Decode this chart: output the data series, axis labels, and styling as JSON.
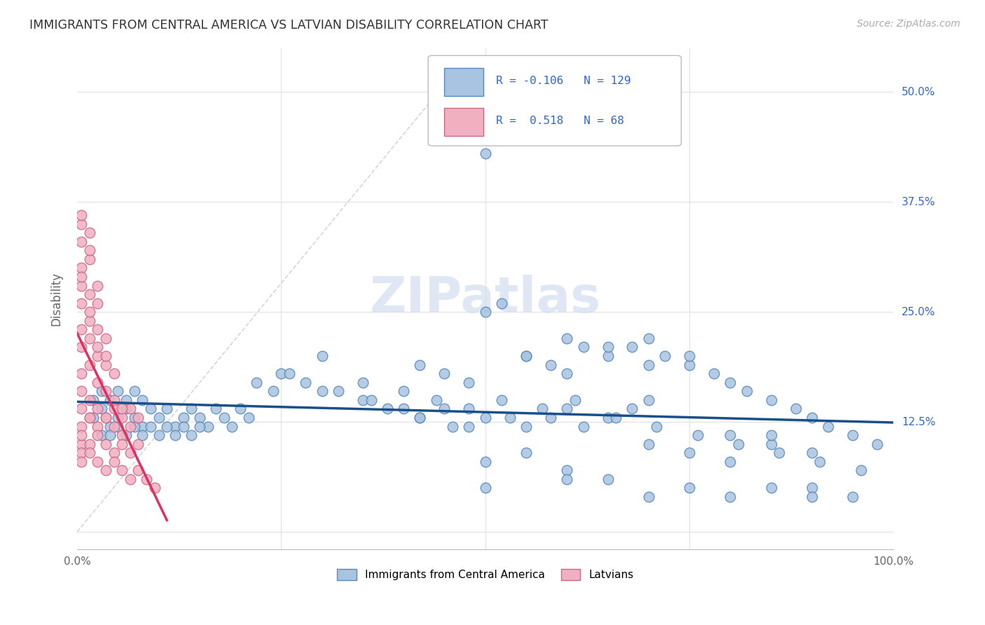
{
  "title": "IMMIGRANTS FROM CENTRAL AMERICA VS LATVIAN DISABILITY CORRELATION CHART",
  "source": "Source: ZipAtlas.com",
  "ylabel": "Disability",
  "ytick_values": [
    0.0,
    0.125,
    0.25,
    0.375,
    0.5
  ],
  "xlim": [
    0.0,
    1.0
  ],
  "ylim": [
    -0.02,
    0.55
  ],
  "blue_R": -0.106,
  "blue_N": 129,
  "pink_R": 0.518,
  "pink_N": 68,
  "blue_color": "#a8c4e0",
  "blue_edge": "#5588bb",
  "blue_line_color": "#1a4f8a",
  "pink_color": "#f0b0c0",
  "pink_edge": "#cc6688",
  "pink_line_color": "#e03060",
  "ref_line_color": "#cccccc",
  "grid_color": "#e0e0e0",
  "title_color": "#333333",
  "axis_label_color": "#666666",
  "legend_R_color": "#3366cc",
  "watermark_color": "#ccd8ee",
  "blue_x": [
    0.02,
    0.03,
    0.04,
    0.05,
    0.06,
    0.07,
    0.08,
    0.09,
    0.1,
    0.11,
    0.12,
    0.13,
    0.14,
    0.15,
    0.16,
    0.17,
    0.18,
    0.19,
    0.2,
    0.21,
    0.02,
    0.03,
    0.04,
    0.05,
    0.06,
    0.07,
    0.08,
    0.03,
    0.04,
    0.05,
    0.06,
    0.07,
    0.08,
    0.09,
    0.1,
    0.11,
    0.12,
    0.13,
    0.14,
    0.15,
    0.25,
    0.3,
    0.35,
    0.4,
    0.42,
    0.45,
    0.48,
    0.5,
    0.52,
    0.55,
    0.58,
    0.6,
    0.62,
    0.65,
    0.68,
    0.7,
    0.72,
    0.75,
    0.78,
    0.8,
    0.82,
    0.85,
    0.88,
    0.9,
    0.92,
    0.95,
    0.98,
    0.4,
    0.42,
    0.45,
    0.48,
    0.5,
    0.52,
    0.55,
    0.58,
    0.6,
    0.62,
    0.65,
    0.68,
    0.7,
    0.3,
    0.35,
    0.38,
    0.42,
    0.46,
    0.5,
    0.55,
    0.6,
    0.65,
    0.7,
    0.75,
    0.8,
    0.85,
    0.9,
    0.22,
    0.24,
    0.26,
    0.28,
    0.32,
    0.36,
    0.44,
    0.48,
    0.53,
    0.57,
    0.61,
    0.66,
    0.71,
    0.76,
    0.81,
    0.86,
    0.91,
    0.96,
    0.5,
    0.55,
    0.6,
    0.65,
    0.7,
    0.75,
    0.8,
    0.85,
    0.9,
    0.95,
    0.5,
    0.6,
    0.7,
    0.75,
    0.8,
    0.85,
    0.9
  ],
  "blue_y": [
    0.13,
    0.14,
    0.12,
    0.13,
    0.14,
    0.13,
    0.12,
    0.14,
    0.13,
    0.14,
    0.12,
    0.13,
    0.14,
    0.13,
    0.12,
    0.14,
    0.13,
    0.12,
    0.14,
    0.13,
    0.15,
    0.16,
    0.15,
    0.16,
    0.15,
    0.16,
    0.15,
    0.11,
    0.11,
    0.12,
    0.11,
    0.12,
    0.11,
    0.12,
    0.11,
    0.12,
    0.11,
    0.12,
    0.11,
    0.12,
    0.18,
    0.2,
    0.17,
    0.16,
    0.19,
    0.18,
    0.17,
    0.25,
    0.26,
    0.2,
    0.19,
    0.18,
    0.21,
    0.2,
    0.21,
    0.22,
    0.2,
    0.19,
    0.18,
    0.17,
    0.16,
    0.15,
    0.14,
    0.13,
    0.12,
    0.11,
    0.1,
    0.14,
    0.13,
    0.14,
    0.12,
    0.13,
    0.15,
    0.12,
    0.13,
    0.14,
    0.12,
    0.13,
    0.14,
    0.15,
    0.16,
    0.15,
    0.14,
    0.13,
    0.12,
    0.08,
    0.09,
    0.07,
    0.06,
    0.1,
    0.09,
    0.08,
    0.1,
    0.05,
    0.17,
    0.16,
    0.18,
    0.17,
    0.16,
    0.15,
    0.15,
    0.14,
    0.13,
    0.14,
    0.15,
    0.13,
    0.12,
    0.11,
    0.1,
    0.09,
    0.08,
    0.07,
    0.43,
    0.2,
    0.22,
    0.21,
    0.19,
    0.2,
    0.11,
    0.11,
    0.09,
    0.04,
    0.05,
    0.06,
    0.04,
    0.05,
    0.04,
    0.05,
    0.04
  ],
  "pink_x": [
    0.005,
    0.015,
    0.025,
    0.035,
    0.045,
    0.055,
    0.065,
    0.075,
    0.005,
    0.015,
    0.025,
    0.035,
    0.045,
    0.055,
    0.065,
    0.005,
    0.015,
    0.025,
    0.035,
    0.045,
    0.055,
    0.005,
    0.015,
    0.025,
    0.035,
    0.045,
    0.005,
    0.015,
    0.025,
    0.035,
    0.005,
    0.015,
    0.025,
    0.035,
    0.005,
    0.015,
    0.025,
    0.005,
    0.015,
    0.025,
    0.005,
    0.015,
    0.005,
    0.015,
    0.005,
    0.015,
    0.005,
    0.005,
    0.005,
    0.005,
    0.005,
    0.015,
    0.025,
    0.035,
    0.045,
    0.055,
    0.065,
    0.075,
    0.005,
    0.015,
    0.025,
    0.035,
    0.045,
    0.055,
    0.065,
    0.075,
    0.085,
    0.095
  ],
  "pink_y": [
    0.14,
    0.13,
    0.14,
    0.13,
    0.14,
    0.13,
    0.14,
    0.13,
    0.12,
    0.13,
    0.12,
    0.13,
    0.12,
    0.11,
    0.12,
    0.16,
    0.15,
    0.17,
    0.16,
    0.15,
    0.14,
    0.18,
    0.19,
    0.2,
    0.19,
    0.18,
    0.21,
    0.22,
    0.21,
    0.2,
    0.23,
    0.24,
    0.23,
    0.22,
    0.26,
    0.25,
    0.26,
    0.28,
    0.27,
    0.28,
    0.3,
    0.31,
    0.33,
    0.32,
    0.35,
    0.34,
    0.36,
    0.29,
    0.1,
    0.09,
    0.11,
    0.1,
    0.11,
    0.1,
    0.09,
    0.1,
    0.09,
    0.1,
    0.08,
    0.09,
    0.08,
    0.07,
    0.08,
    0.07,
    0.06,
    0.07,
    0.06,
    0.05
  ]
}
